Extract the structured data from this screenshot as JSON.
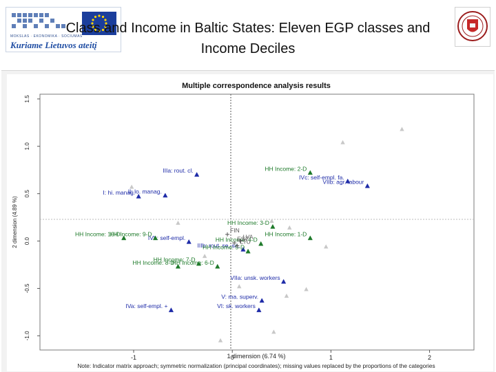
{
  "slide": {
    "title_line1": "Class and Income in Baltic States: Eleven EGP classes and",
    "title_line2": "Income Deciles"
  },
  "logos": {
    "left_small_text": "MOKSLAS · EKONOMIKA · SOCIUMAS",
    "left_slogan": "Kuriame Lietuvos ateitį",
    "left_icon": "eu-flag-icon",
    "right_icon": "university-crest-icon"
  },
  "colors": {
    "class_points": "#1f2ca8",
    "income_points": "#1e7a2a",
    "country_points": "#555555",
    "ghost_points": "#c8c8c8"
  },
  "chart_data": {
    "type": "scatter",
    "title": "Multiple correspondence analysis results",
    "xlabel": "1 dimension (6.74 %)",
    "ylabel": "2 dimension (4.89 %)",
    "note": "Note: Indicator matrix approach; symmetric normalization (principal coordinates); missing values replaced by the proportions of the categories",
    "xlim": [
      -1.95,
      2.45
    ],
    "ylim": [
      -1.15,
      1.55
    ],
    "xticks": [
      "-1",
      "0",
      "1",
      "2"
    ],
    "yticks": [
      "1.5",
      "1.0",
      "0.5",
      "0.0",
      "-0.5",
      "-1.0"
    ],
    "grid": false,
    "reference_lines": "dotted lines at x = 0 and y = 0",
    "series": [
      {
        "group": "class",
        "marker": "filled-triangle",
        "points": [
          {
            "label": "I: hi. manag.",
            "x": -0.95,
            "y": 0.47
          },
          {
            "label": "II: lo. manag.",
            "x": -0.68,
            "y": 0.48
          },
          {
            "label": "IIIa: rout. cl.",
            "x": -0.36,
            "y": 0.7
          },
          {
            "label": "IIIb: rout. se.-sa.",
            "x": 0.11,
            "y": -0.09
          },
          {
            "label": "IVa: self-empl. +",
            "x": -0.62,
            "y": -0.73
          },
          {
            "label": "IVb: self-empl.",
            "x": -0.44,
            "y": -0.01
          },
          {
            "label": "IVc: self-empl. fa.",
            "x": 1.17,
            "y": 0.63
          },
          {
            "label": "V: ma. superv.",
            "x": 0.3,
            "y": -0.63
          },
          {
            "label": "VI: sk. workers",
            "x": 0.27,
            "y": -0.73
          },
          {
            "label": "VIIa: unsk. workers",
            "x": 0.52,
            "y": -0.43
          },
          {
            "label": "VIIb: agr. labour",
            "x": 1.37,
            "y": 0.58
          }
        ]
      },
      {
        "group": "income",
        "marker": "filled-triangle",
        "points": [
          {
            "label": "HH Income: 1-D",
            "x": 0.79,
            "y": 0.03
          },
          {
            "label": "HH Income: 2-D",
            "x": 0.79,
            "y": 0.72
          },
          {
            "label": "HH Income: 3-D",
            "x": 0.41,
            "y": 0.15
          },
          {
            "label": "HH Income: 4-D",
            "x": 0.29,
            "y": -0.03
          },
          {
            "label": "HH Income: 5-D",
            "x": 0.16,
            "y": -0.11
          },
          {
            "label": "HH Income: 6-D",
            "x": -0.15,
            "y": -0.27
          },
          {
            "label": "HH Income: 7-D",
            "x": -0.34,
            "y": -0.24
          },
          {
            "label": "HH Income: 8-D",
            "x": -0.55,
            "y": -0.27
          },
          {
            "label": "HH Income: 9-D",
            "x": -0.78,
            "y": 0.03
          },
          {
            "label": "HH Income: 10-D",
            "x": -1.1,
            "y": 0.03
          }
        ]
      },
      {
        "group": "country",
        "marker": "plus",
        "points": [
          {
            "label": "FIN",
            "x": -0.05,
            "y": 0.07
          },
          {
            "label": "LVA",
            "x": 0.08,
            "y": 0.0
          },
          {
            "label": "EST",
            "x": 0.02,
            "y": -0.02
          },
          {
            "label": "LTU",
            "x": 0.05,
            "y": -0.05
          }
        ]
      },
      {
        "group": "unlabelled",
        "marker": "triangle",
        "points": [
          {
            "x": 1.72,
            "y": 1.18
          },
          {
            "x": 1.12,
            "y": 1.04
          },
          {
            "x": -1.02,
            "y": 0.57
          },
          {
            "x": -0.55,
            "y": 0.19
          },
          {
            "x": 0.4,
            "y": 0.21
          },
          {
            "x": 0.58,
            "y": 0.14
          },
          {
            "x": -0.28,
            "y": -0.16
          },
          {
            "x": 0.95,
            "y": -0.06
          },
          {
            "x": 0.75,
            "y": -0.51
          },
          {
            "x": 0.07,
            "y": -0.48
          },
          {
            "x": 0.55,
            "y": -0.58
          },
          {
            "x": 0.42,
            "y": -0.96
          },
          {
            "x": -0.12,
            "y": -1.05
          }
        ]
      }
    ]
  }
}
